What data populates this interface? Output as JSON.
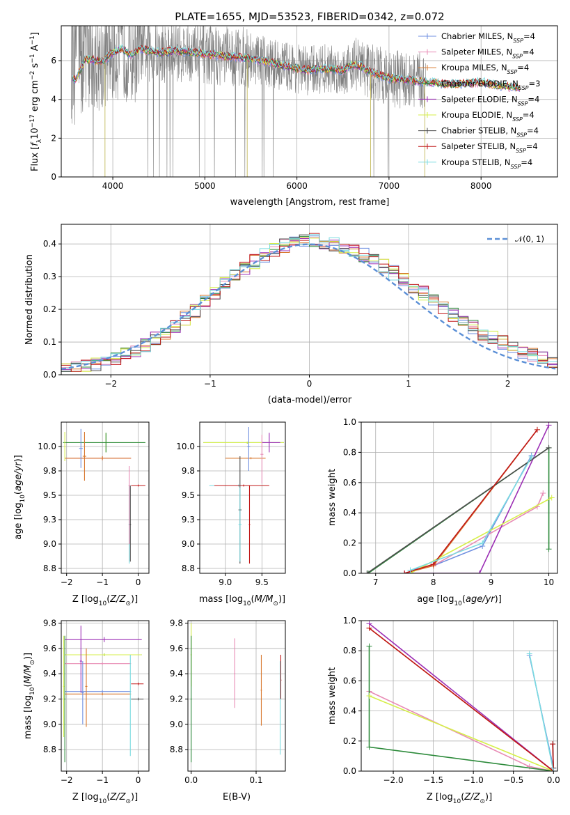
{
  "title": "PLATE=1655, MJD=53523, FIBERID=0342, z=0.072",
  "legend_labels": [
    "Chabrier MILES, N_SSP=4",
    "Salpeter MILES, N_SSP=4",
    "Kroupa MILES, N_SSP=4",
    "Chabrier ELODIE, N_SSP=3",
    "Salpeter ELODIE, N_SSP=4",
    "Kroupa ELODIE, N_SSP=4",
    "Chabrier STELIB, N_SSP=4",
    "Salpeter STELIB, N_SSP=4",
    "Kroupa STELIB, N_SSP=4"
  ],
  "colors": {
    "Chabrier MILES": "#6f8fe0",
    "Salpeter MILES": "#e88bb5",
    "Kroupa MILES": "#d8782e",
    "Chabrier ELODIE": "#2c8a3a",
    "Salpeter ELODIE": "#9c2fb5",
    "Kroupa ELODIE": "#d6ef4a",
    "Chabrier STELIB": "#4d4d4d",
    "Salpeter STELIB": "#c01818",
    "Kroupa STELIB": "#7adbe0",
    "data": "#808080",
    "gaussian": "#5b8fd6"
  },
  "chart_data": [
    {
      "type": "line",
      "id": "spectrum",
      "title": "PLATE=1655, MJD=53523, FIBERID=0342, z=0.072",
      "xlabel": "wavelength [Angstrom, rest frame]",
      "ylabel": "Flux [f_λ10^-17 erg cm^-2 s^-1 A^-1]",
      "xlim": [
        3440,
        8830
      ],
      "ylim": [
        0,
        7.8
      ],
      "xticks": [
        4000,
        5000,
        6000,
        7000,
        8000
      ],
      "yticks": [
        0,
        2,
        4,
        6
      ],
      "model_curve": {
        "x": [
          3550,
          3600,
          3700,
          3800,
          3900,
          4000,
          4100,
          4200,
          4300,
          4500,
          4700,
          4900,
          5100,
          5300,
          5500,
          5700,
          5900,
          6100,
          6300,
          6500,
          6600,
          6700,
          6800,
          7000,
          7200,
          7400,
          7600,
          7800,
          8000,
          8200,
          8400
        ],
        "y": [
          5.1,
          5.0,
          6.1,
          6.0,
          6.0,
          6.4,
          6.6,
          6.3,
          6.6,
          6.4,
          6.5,
          6.4,
          6.3,
          6.2,
          6.1,
          5.9,
          5.7,
          5.5,
          5.6,
          5.5,
          5.8,
          5.7,
          5.4,
          5.1,
          5.0,
          4.9,
          4.8,
          4.8,
          4.9,
          4.7,
          4.6
        ]
      },
      "data_spectrum_range": [
        3550,
        7400
      ]
    },
    {
      "type": "step",
      "id": "residuals",
      "xlabel": "(data-model)/error",
      "ylabel": "Normed distribution",
      "xlim": [
        -2.5,
        2.5
      ],
      "ylim": [
        0,
        0.46
      ],
      "xticks": [
        -2,
        -1,
        0,
        1,
        2
      ],
      "yticks": [
        0.0,
        0.1,
        0.2,
        0.3,
        0.4
      ],
      "legend": "𝒩(0, 1)",
      "bin_width": 0.1
    },
    {
      "type": "errorbar",
      "id": "age-vs-Z",
      "xlabel": "Z [log10(Z/Z⊙)]",
      "ylabel": "age [log10(age/yr)]",
      "xlim": [
        -2.15,
        0.3
      ],
      "ylim": [
        8.7,
        10.25
      ],
      "xticks": [
        -2,
        -1,
        0
      ],
      "yticks": [
        8.75,
        9.0,
        9.25,
        9.5,
        9.75,
        10.0
      ]
    },
    {
      "type": "errorbar",
      "id": "age-vs-mass",
      "xlabel": "mass [log10(M/M⊙)]",
      "xlim": [
        8.65,
        9.82
      ],
      "ylim": [
        8.7,
        10.25
      ],
      "xticks": [
        9.0,
        9.5
      ],
      "yticks": [
        8.75,
        9.0,
        9.25,
        9.5,
        9.75,
        10.0
      ]
    },
    {
      "type": "line",
      "id": "massweight-vs-age",
      "xlabel": "age [log10(age/yr)]",
      "ylabel": "mass weight",
      "xlim": [
        6.75,
        10.15
      ],
      "ylim": [
        0,
        1.0
      ],
      "xticks": [
        7,
        8,
        9,
        10
      ],
      "yticks": [
        0.0,
        0.2,
        0.4,
        0.6,
        0.8,
        1.0
      ]
    },
    {
      "type": "errorbar",
      "id": "mass-vs-Z",
      "xlabel": "Z [log10(Z/Z⊙)]",
      "ylabel": "mass [log10(M/M⊙)]",
      "xlim": [
        -2.15,
        0.3
      ],
      "ylim": [
        8.63,
        9.82
      ],
      "xticks": [
        -2,
        -1,
        0
      ],
      "yticks": [
        8.8,
        9.0,
        9.2,
        9.4,
        9.6,
        9.8
      ]
    },
    {
      "type": "errorbar",
      "id": "mass-vs-ebv",
      "xlabel": "E(B-V)",
      "xlim": [
        -0.005,
        0.145
      ],
      "ylim": [
        8.63,
        9.82
      ],
      "xticks": [
        0.0,
        0.1
      ],
      "yticks": [
        8.8,
        9.0,
        9.2,
        9.4,
        9.6,
        9.8
      ]
    },
    {
      "type": "line",
      "id": "massweight-vs-Z",
      "xlabel": "Z [log10(Z/Z⊙)]",
      "ylabel": "mass weight",
      "xlim": [
        -2.4,
        0.05
      ],
      "ylim": [
        0,
        1.0
      ],
      "xticks": [
        -2.0,
        -1.5,
        -1.0,
        -0.5,
        0.0
      ],
      "yticks": [
        0.0,
        0.2,
        0.4,
        0.6,
        0.8,
        1.0
      ]
    }
  ]
}
